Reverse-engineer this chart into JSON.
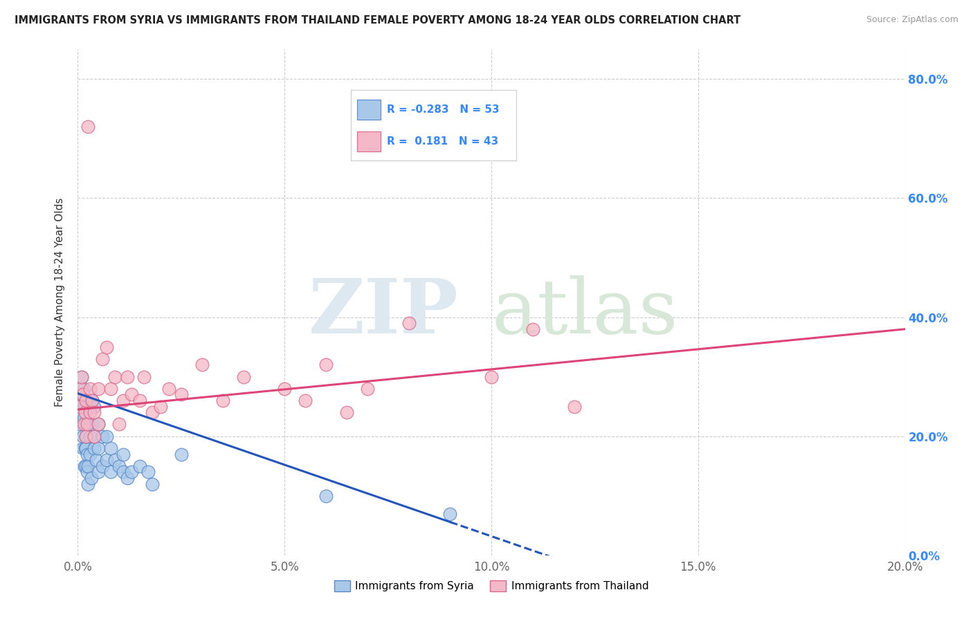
{
  "title": "IMMIGRANTS FROM SYRIA VS IMMIGRANTS FROM THAILAND FEMALE POVERTY AMONG 18-24 YEAR OLDS CORRELATION CHART",
  "source": "Source: ZipAtlas.com",
  "ylabel": "Female Poverty Among 18-24 Year Olds",
  "xlim": [
    0.0,
    0.2
  ],
  "ylim": [
    0.0,
    0.85
  ],
  "xticks": [
    0.0,
    0.05,
    0.1,
    0.15,
    0.2
  ],
  "yticks": [
    0.0,
    0.2,
    0.4,
    0.6,
    0.8
  ],
  "syria_color": "#a8c8e8",
  "thailand_color": "#f4b8c8",
  "syria_edge_color": "#5588cc",
  "thailand_edge_color": "#dd6688",
  "trendline_syria_color": "#2255bb",
  "trendline_thailand_color": "#dd4477",
  "R_syria": -0.283,
  "N_syria": 53,
  "R_thailand": 0.181,
  "N_thailand": 43,
  "background_color": "#ffffff",
  "grid_color": "#cccccc",
  "syria_x": [
    0.0005,
    0.0007,
    0.0008,
    0.001,
    0.001,
    0.0012,
    0.0013,
    0.0014,
    0.0015,
    0.0015,
    0.0016,
    0.0017,
    0.0018,
    0.0018,
    0.002,
    0.002,
    0.002,
    0.0022,
    0.0022,
    0.0025,
    0.0025,
    0.0028,
    0.003,
    0.003,
    0.003,
    0.0032,
    0.0035,
    0.0035,
    0.004,
    0.004,
    0.004,
    0.0045,
    0.005,
    0.005,
    0.005,
    0.006,
    0.006,
    0.007,
    0.007,
    0.008,
    0.008,
    0.009,
    0.01,
    0.011,
    0.011,
    0.012,
    0.013,
    0.015,
    0.017,
    0.018,
    0.025,
    0.06,
    0.09
  ],
  "syria_y": [
    0.22,
    0.24,
    0.26,
    0.27,
    0.3,
    0.18,
    0.2,
    0.23,
    0.25,
    0.28,
    0.15,
    0.18,
    0.22,
    0.25,
    0.15,
    0.18,
    0.2,
    0.14,
    0.17,
    0.15,
    0.12,
    0.22,
    0.25,
    0.2,
    0.17,
    0.13,
    0.26,
    0.22,
    0.18,
    0.25,
    0.2,
    0.16,
    0.22,
    0.18,
    0.14,
    0.2,
    0.15,
    0.2,
    0.16,
    0.18,
    0.14,
    0.16,
    0.15,
    0.17,
    0.14,
    0.13,
    0.14,
    0.15,
    0.14,
    0.12,
    0.17,
    0.1,
    0.07
  ],
  "thailand_x": [
    0.0005,
    0.0007,
    0.001,
    0.0012,
    0.0015,
    0.0017,
    0.002,
    0.002,
    0.0022,
    0.0025,
    0.003,
    0.003,
    0.0035,
    0.004,
    0.004,
    0.005,
    0.005,
    0.006,
    0.007,
    0.008,
    0.009,
    0.01,
    0.011,
    0.012,
    0.013,
    0.015,
    0.016,
    0.018,
    0.02,
    0.022,
    0.025,
    0.03,
    0.035,
    0.04,
    0.05,
    0.055,
    0.06,
    0.065,
    0.07,
    0.08,
    0.1,
    0.11,
    0.12
  ],
  "thailand_y": [
    0.25,
    0.28,
    0.3,
    0.27,
    0.22,
    0.24,
    0.2,
    0.26,
    0.22,
    0.72,
    0.28,
    0.24,
    0.26,
    0.2,
    0.24,
    0.22,
    0.28,
    0.33,
    0.35,
    0.28,
    0.3,
    0.22,
    0.26,
    0.3,
    0.27,
    0.26,
    0.3,
    0.24,
    0.25,
    0.28,
    0.27,
    0.32,
    0.26,
    0.3,
    0.28,
    0.26,
    0.32,
    0.24,
    0.28,
    0.39,
    0.3,
    0.38,
    0.25
  ]
}
